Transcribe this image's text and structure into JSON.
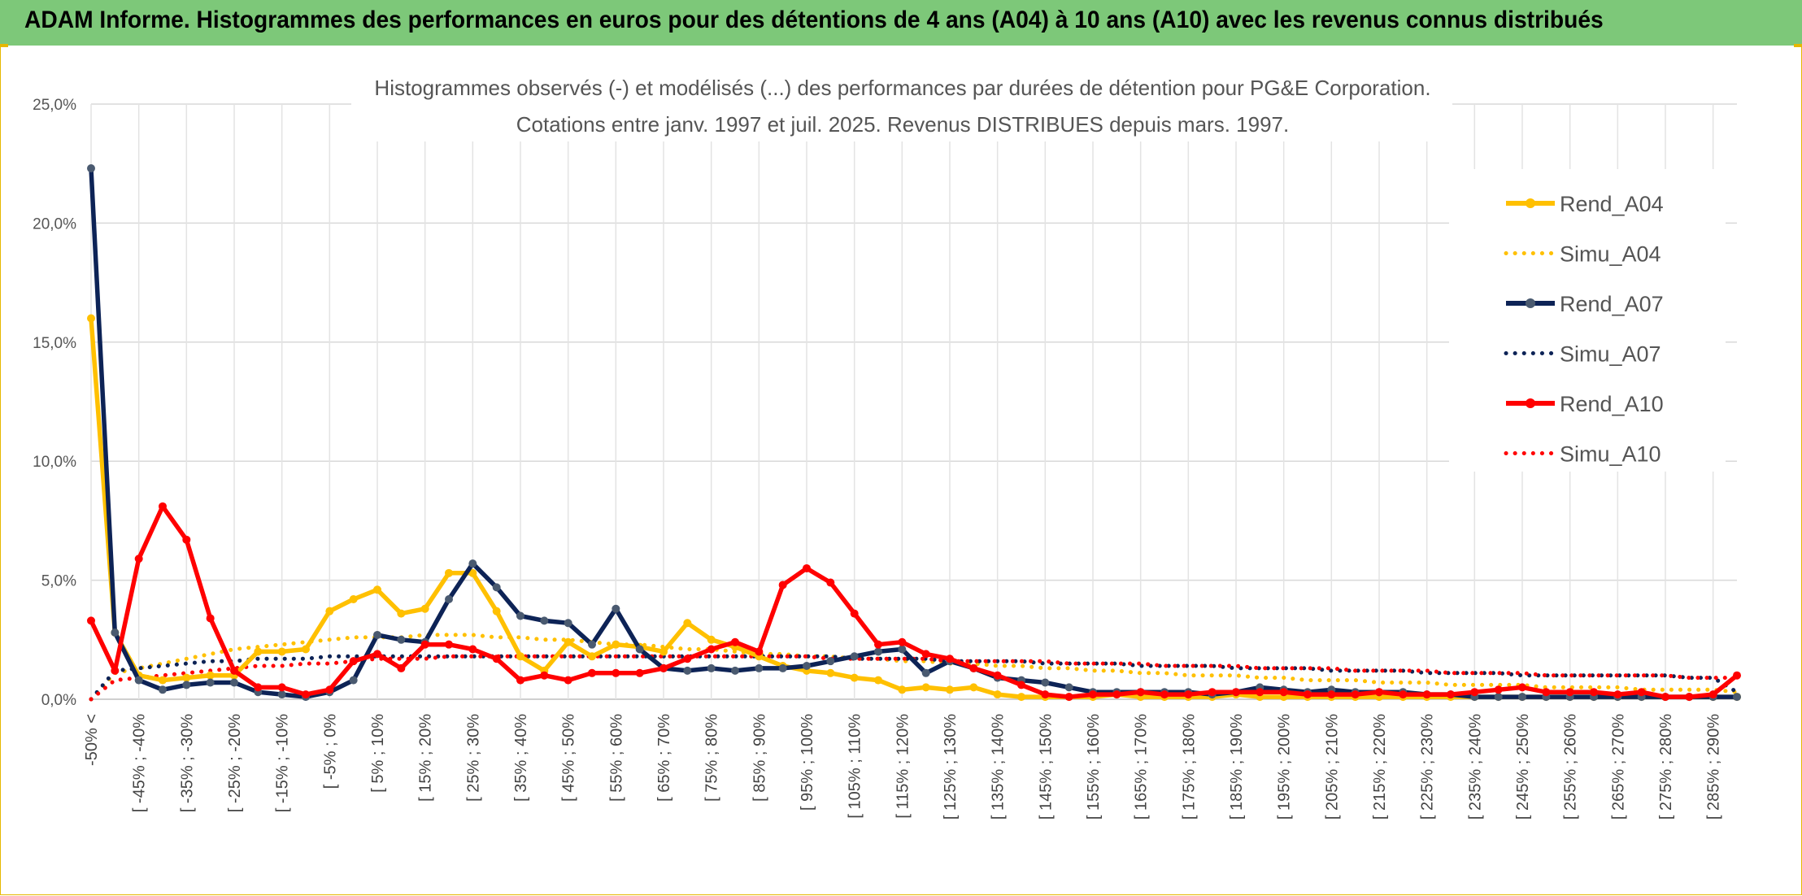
{
  "header": {
    "title": "ADAM Informe. Histogrammes des performances en euros pour des détentions de 4 ans (A04) à 10 ans (A10) avec les revenus connus distribués"
  },
  "colors": {
    "banner": "#7dc879",
    "A04": "#ffc000",
    "A07": "#0d2356",
    "A10": "#ff0000",
    "frame": "#e6b800"
  },
  "chart_data": {
    "type": "line",
    "title": "Histogrammes observés (-) et modélisés (...) des performances par durées de détention pour PG&E Corporation.",
    "subtitle": "Cotations entre janv. 1997 et juil. 2025. Revenus DISTRIBUES depuis mars. 1997.",
    "xlabel": "",
    "ylabel": "",
    "ylim": [
      0,
      25
    ],
    "yticks": [
      "0,0%",
      "5,0%",
      "10,0%",
      "15,0%",
      "20,0%",
      "25,0%"
    ],
    "grid": true,
    "legend_position": "right",
    "x_labels": [
      "-50% <",
      "[ -45% ; -40%",
      "[ -35% ; -30%",
      "[ -25% ; -20%",
      "[ -15% ; -10%",
      "[ -5% ; 0%",
      "[ 5% ; 10%",
      "[ 15% ; 20%",
      "[ 25% ; 30%",
      "[ 35% ; 40%",
      "[ 45% ; 50%",
      "[ 55% ; 60%",
      "[ 65% ; 70%",
      "[ 75% ; 80%",
      "[ 85% ; 90%",
      "[ 95% ; 100%",
      "[ 105% ; 110%",
      "[ 115% ; 120%",
      "[ 125% ; 130%",
      "[ 135% ; 140%",
      "[ 145% ; 150%",
      "[ 155% ; 160%",
      "[ 165% ; 170%",
      "[ 175% ; 180%",
      "[ 185% ; 190%",
      "[ 195% ; 200%",
      "[ 205% ; 210%",
      "[ 215% ; 220%",
      "[ 225% ; 230%",
      "[ 235% ; 240%",
      "[ 245% ; 250%",
      "[ 255% ; 260%",
      "[ 265% ; 270%",
      "[ 275% ; 280%",
      "[ 285% ; 290%"
    ],
    "series": [
      {
        "name": "Rend_A04",
        "style": "solid",
        "color": "#ffc000",
        "values": [
          16.0,
          2.8,
          1.0,
          0.8,
          0.9,
          1.0,
          1.0,
          2.0,
          2.0,
          2.1,
          3.7,
          4.2,
          4.6,
          3.6,
          3.8,
          5.3,
          5.3,
          3.7,
          1.8,
          1.2,
          2.4,
          1.8,
          2.3,
          2.2,
          2.0,
          3.2,
          2.5,
          2.2,
          1.8,
          1.4,
          1.2,
          1.1,
          0.9,
          0.8,
          0.4,
          0.5,
          0.4,
          0.5,
          0.2,
          0.1,
          0.1,
          0.1,
          0.1,
          0.2,
          0.1,
          0.1,
          0.1,
          0.1,
          0.2,
          0.1,
          0.1,
          0.1,
          0.1,
          0.1,
          0.1,
          0.1,
          0.1,
          0.1,
          0.1,
          0.1,
          0.1,
          0.1,
          0.1,
          0.1,
          0.1,
          0.1,
          0.1,
          0.1,
          0.1,
          0.1
        ]
      },
      {
        "name": "Simu_A04",
        "style": "dotted",
        "color": "#ffc000",
        "values": [
          0.0,
          1.1,
          1.3,
          1.5,
          1.7,
          1.9,
          2.1,
          2.2,
          2.3,
          2.4,
          2.5,
          2.6,
          2.6,
          2.6,
          2.7,
          2.7,
          2.7,
          2.6,
          2.6,
          2.5,
          2.5,
          2.4,
          2.3,
          2.3,
          2.2,
          2.1,
          2.1,
          2.0,
          1.9,
          1.9,
          1.8,
          1.8,
          1.7,
          1.7,
          1.6,
          1.6,
          1.5,
          1.5,
          1.4,
          1.4,
          1.3,
          1.3,
          1.2,
          1.2,
          1.1,
          1.1,
          1.0,
          1.0,
          1.0,
          0.9,
          0.9,
          0.8,
          0.8,
          0.8,
          0.7,
          0.7,
          0.7,
          0.6,
          0.6,
          0.6,
          0.6,
          0.5,
          0.5,
          0.5,
          0.5,
          0.4,
          0.4,
          0.4,
          0.4,
          0.3
        ]
      },
      {
        "name": "Rend_A07",
        "style": "solid",
        "color": "#0d2356",
        "values": [
          22.3,
          2.8,
          0.8,
          0.4,
          0.6,
          0.7,
          0.7,
          0.3,
          0.2,
          0.1,
          0.3,
          0.8,
          2.7,
          2.5,
          2.4,
          4.2,
          5.7,
          4.7,
          3.5,
          3.3,
          3.2,
          2.3,
          3.8,
          2.1,
          1.3,
          1.2,
          1.3,
          1.2,
          1.3,
          1.3,
          1.4,
          1.6,
          1.8,
          2.0,
          2.1,
          1.1,
          1.6,
          1.3,
          0.9,
          0.8,
          0.7,
          0.5,
          0.3,
          0.3,
          0.3,
          0.3,
          0.3,
          0.2,
          0.3,
          0.5,
          0.4,
          0.3,
          0.4,
          0.3,
          0.3,
          0.3,
          0.2,
          0.2,
          0.1,
          0.1,
          0.1,
          0.1,
          0.1,
          0.1,
          0.1,
          0.1,
          0.1,
          0.1,
          0.1,
          0.1
        ]
      },
      {
        "name": "Simu_A07",
        "style": "dotted",
        "color": "#0d2356",
        "values": [
          0.0,
          1.2,
          1.3,
          1.4,
          1.5,
          1.6,
          1.6,
          1.7,
          1.7,
          1.7,
          1.8,
          1.8,
          1.8,
          1.8,
          1.8,
          1.8,
          1.8,
          1.8,
          1.8,
          1.8,
          1.8,
          1.8,
          1.8,
          1.8,
          1.8,
          1.8,
          1.8,
          1.8,
          1.8,
          1.8,
          1.8,
          1.8,
          1.7,
          1.7,
          1.7,
          1.7,
          1.6,
          1.6,
          1.6,
          1.6,
          1.5,
          1.5,
          1.5,
          1.5,
          1.4,
          1.4,
          1.4,
          1.4,
          1.3,
          1.3,
          1.3,
          1.3,
          1.2,
          1.2,
          1.2,
          1.2,
          1.1,
          1.1,
          1.1,
          1.1,
          1.0,
          1.0,
          1.0,
          1.0,
          1.0,
          1.0,
          1.0,
          0.9,
          0.9,
          0.3
        ]
      },
      {
        "name": "Rend_A10",
        "style": "solid",
        "color": "#ff0000",
        "values": [
          3.3,
          1.2,
          5.9,
          8.1,
          6.7,
          3.4,
          1.2,
          0.5,
          0.5,
          0.2,
          0.4,
          1.6,
          1.9,
          1.3,
          2.3,
          2.3,
          2.1,
          1.7,
          0.8,
          1.0,
          0.8,
          1.1,
          1.1,
          1.1,
          1.3,
          1.7,
          2.1,
          2.4,
          2.0,
          4.8,
          5.5,
          4.9,
          3.6,
          2.3,
          2.4,
          1.9,
          1.7,
          1.3,
          1.0,
          0.6,
          0.2,
          0.1,
          0.2,
          0.2,
          0.3,
          0.2,
          0.2,
          0.3,
          0.3,
          0.3,
          0.3,
          0.2,
          0.2,
          0.2,
          0.3,
          0.2,
          0.2,
          0.2,
          0.3,
          0.4,
          0.5,
          0.3,
          0.3,
          0.3,
          0.2,
          0.3,
          0.1,
          0.1,
          0.2,
          1.0
        ]
      },
      {
        "name": "Simu_A10",
        "style": "dotted",
        "color": "#ff0000",
        "values": [
          0.0,
          0.8,
          0.9,
          1.0,
          1.1,
          1.2,
          1.3,
          1.4,
          1.4,
          1.5,
          1.5,
          1.6,
          1.7,
          1.7,
          1.7,
          1.8,
          1.8,
          1.8,
          1.8,
          1.8,
          1.8,
          1.8,
          1.8,
          1.8,
          1.8,
          1.8,
          1.8,
          1.8,
          1.8,
          1.8,
          1.8,
          1.7,
          1.7,
          1.7,
          1.7,
          1.7,
          1.6,
          1.6,
          1.6,
          1.6,
          1.6,
          1.5,
          1.5,
          1.5,
          1.5,
          1.4,
          1.4,
          1.4,
          1.4,
          1.3,
          1.3,
          1.3,
          1.3,
          1.2,
          1.2,
          1.2,
          1.2,
          1.1,
          1.1,
          1.1,
          1.1,
          1.0,
          1.0,
          1.0,
          1.0,
          1.0,
          1.0,
          0.9,
          0.9,
          0.9
        ]
      }
    ]
  }
}
